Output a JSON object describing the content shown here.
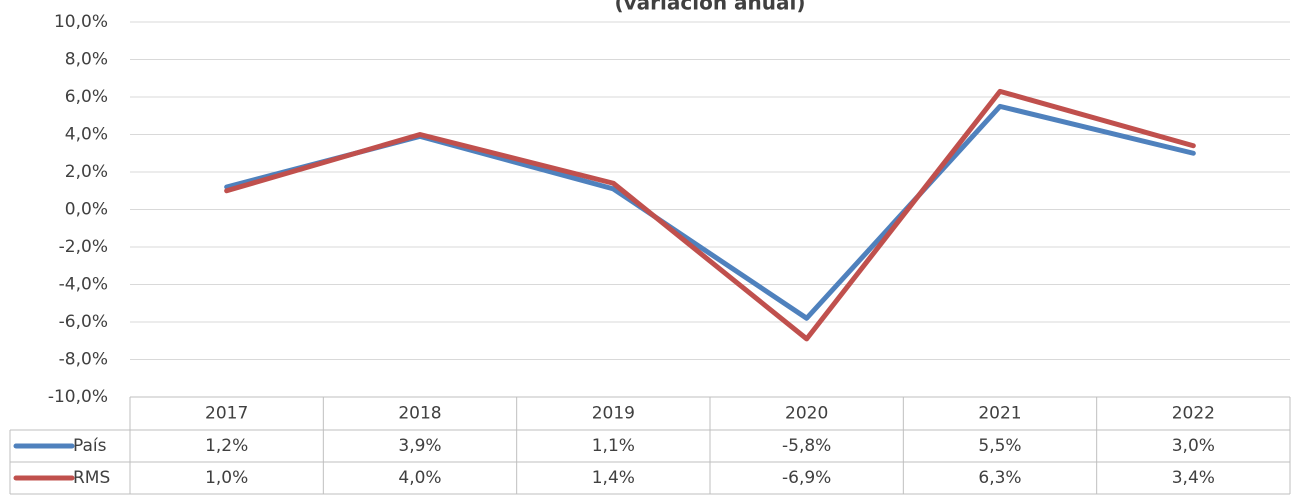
{
  "chart_data": {
    "type": "line",
    "title": "(variación anual)",
    "categories": [
      "2017",
      "2018",
      "2019",
      "2020",
      "2021",
      "2022"
    ],
    "series": [
      {
        "name": "País",
        "color": "#4f81bd",
        "values": [
          1.2,
          3.9,
          1.1,
          -5.8,
          5.5,
          3.0
        ],
        "value_labels": [
          "1,2%",
          "3,9%",
          "1,1%",
          "-5,8%",
          "5,5%",
          "3,0%"
        ]
      },
      {
        "name": "RMS",
        "color": "#c0504d",
        "values": [
          1.0,
          4.0,
          1.4,
          -6.9,
          6.3,
          3.4
        ],
        "value_labels": [
          "1,0%",
          "4,0%",
          "1,4%",
          "-6,9%",
          "6,3%",
          "3,4%"
        ]
      }
    ],
    "ylim": [
      -10,
      10
    ],
    "yticks": [
      {
        "value": -10,
        "label": "-10,0%"
      },
      {
        "value": -8,
        "label": "-8,0%"
      },
      {
        "value": -6,
        "label": "-6,0%"
      },
      {
        "value": -4,
        "label": "-4,0%"
      },
      {
        "value": -2,
        "label": "-2,0%"
      },
      {
        "value": 0,
        "label": "0,0%"
      },
      {
        "value": 2,
        "label": "2,0%"
      },
      {
        "value": 4,
        "label": "4,0%"
      },
      {
        "value": 6,
        "label": "6,0%"
      },
      {
        "value": 8,
        "label": "8,0%"
      },
      {
        "value": 10,
        "label": "10,0%"
      }
    ],
    "grid": true
  }
}
